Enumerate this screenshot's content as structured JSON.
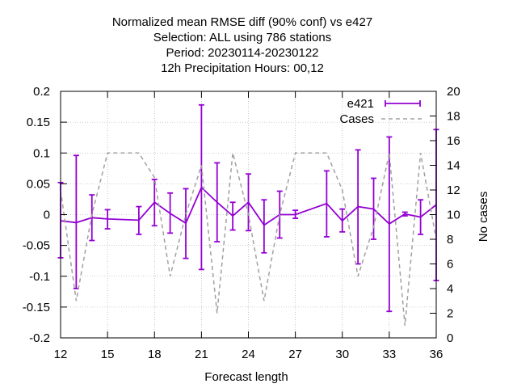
{
  "chart_data": {
    "type": "line",
    "title_lines": [
      "Normalized mean RMSE diff (90% conf) vs e427",
      "Selection: ALL using   786 stations",
      "Period: 20230114-20230122",
      "12h Precipitation   Hours:  00,12"
    ],
    "xlabel": "Forecast length",
    "ylabel": "",
    "y2label": "No cases",
    "xlim": [
      12,
      36
    ],
    "ylim": [
      -0.2,
      0.2
    ],
    "y2lim": [
      0,
      20
    ],
    "xticks": [
      12,
      15,
      18,
      21,
      24,
      27,
      30,
      33,
      36
    ],
    "yticks": [
      -0.2,
      -0.15,
      -0.1,
      -0.05,
      0,
      0.05,
      0.1,
      0.15,
      0.2
    ],
    "y2ticks": [
      0,
      2,
      4,
      6,
      8,
      10,
      12,
      14,
      16,
      18,
      20
    ],
    "ytick_labels": [
      "-0.2",
      "-0.15",
      "-0.1",
      "-0.05",
      "0",
      "0.05",
      "0.1",
      "0.15",
      "0.2"
    ],
    "grid": true,
    "legend_position": "top-right",
    "series": [
      {
        "name": "e421",
        "axis": "y",
        "color": "#9400d3",
        "style": "solid-errorbars",
        "points": [
          {
            "x": 12,
            "y": -0.01,
            "lo": -0.07,
            "hi": 0.052
          },
          {
            "x": 13,
            "y": -0.013,
            "lo": -0.12,
            "hi": 0.096
          },
          {
            "x": 14,
            "y": -0.005,
            "lo": -0.042,
            "hi": 0.032
          },
          {
            "x": 15,
            "y": -0.007,
            "lo": -0.023,
            "hi": 0.008
          },
          {
            "x": 17,
            "y": -0.009,
            "lo": -0.032,
            "hi": 0.013
          },
          {
            "x": 18,
            "y": 0.02,
            "lo": -0.018,
            "hi": 0.057
          },
          {
            "x": 19,
            "y": 0.002,
            "lo": -0.03,
            "hi": 0.035
          },
          {
            "x": 20,
            "y": -0.014,
            "lo": -0.071,
            "hi": 0.042
          },
          {
            "x": 21,
            "y": 0.044,
            "lo": -0.089,
            "hi": 0.178
          },
          {
            "x": 22,
            "y": 0.02,
            "lo": -0.044,
            "hi": 0.084
          },
          {
            "x": 23,
            "y": -0.002,
            "lo": -0.025,
            "hi": 0.02
          },
          {
            "x": 24,
            "y": 0.02,
            "lo": -0.026,
            "hi": 0.066
          },
          {
            "x": 25,
            "y": -0.017,
            "lo": -0.062,
            "hi": 0.024
          },
          {
            "x": 26,
            "y": 0.0,
            "lo": -0.038,
            "hi": 0.038
          },
          {
            "x": 27,
            "y": 0.0,
            "lo": -0.006,
            "hi": 0.007
          },
          {
            "x": 29,
            "y": 0.018,
            "lo": -0.036,
            "hi": 0.071
          },
          {
            "x": 30,
            "y": -0.01,
            "lo": -0.028,
            "hi": 0.009
          },
          {
            "x": 31,
            "y": 0.013,
            "lo": -0.08,
            "hi": 0.105
          },
          {
            "x": 32,
            "y": 0.009,
            "lo": -0.04,
            "hi": 0.059
          },
          {
            "x": 33,
            "y": -0.015,
            "lo": -0.157,
            "hi": 0.126
          },
          {
            "x": 34,
            "y": 0.001,
            "lo": -0.002,
            "hi": 0.004
          },
          {
            "x": 35,
            "y": -0.004,
            "lo": -0.032,
            "hi": 0.024
          },
          {
            "x": 36,
            "y": 0.016,
            "lo": -0.107,
            "hi": 0.138
          }
        ]
      },
      {
        "name": "Cases",
        "axis": "y2",
        "color": "#a0a0a0",
        "style": "dashed",
        "points": [
          {
            "x": 12,
            "y": 12
          },
          {
            "x": 13,
            "y": 3
          },
          {
            "x": 14,
            "y": 10
          },
          {
            "x": 15,
            "y": 15
          },
          {
            "x": 17,
            "y": 15
          },
          {
            "x": 18,
            "y": 13
          },
          {
            "x": 19,
            "y": 5
          },
          {
            "x": 20,
            "y": 10
          },
          {
            "x": 21,
            "y": 14
          },
          {
            "x": 22,
            "y": 2
          },
          {
            "x": 23,
            "y": 15
          },
          {
            "x": 24,
            "y": 10
          },
          {
            "x": 25,
            "y": 3
          },
          {
            "x": 26,
            "y": 10
          },
          {
            "x": 27,
            "y": 15
          },
          {
            "x": 29,
            "y": 15
          },
          {
            "x": 30,
            "y": 12
          },
          {
            "x": 31,
            "y": 5
          },
          {
            "x": 32,
            "y": 9
          },
          {
            "x": 33,
            "y": 15
          },
          {
            "x": 34,
            "y": 1
          },
          {
            "x": 35,
            "y": 15
          },
          {
            "x": 36,
            "y": 8
          }
        ]
      }
    ]
  }
}
